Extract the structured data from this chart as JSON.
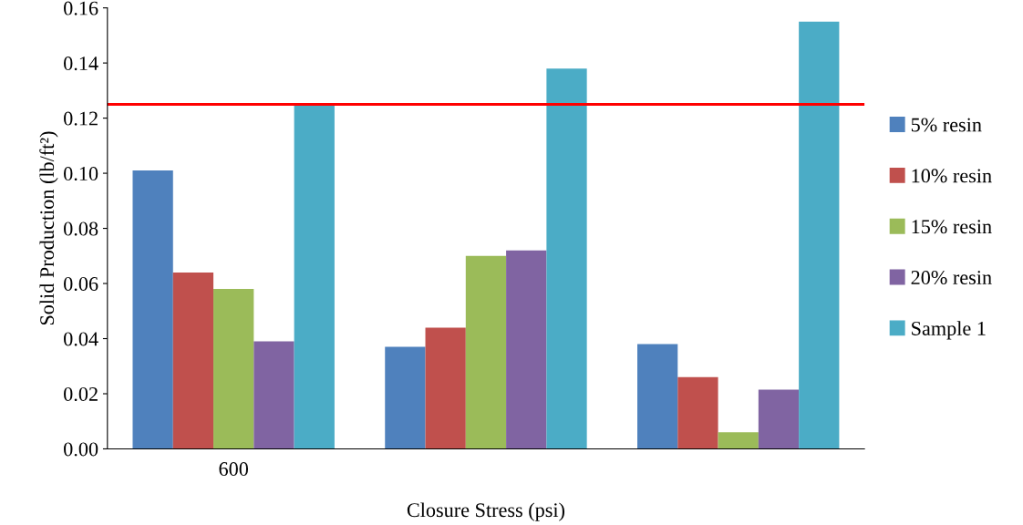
{
  "chart_data": {
    "type": "bar",
    "xlabel": "Closure Stress (psi)",
    "ylabel": "Solid Production (lb/ft²)",
    "categories": [
      "600",
      null,
      null
    ],
    "series": [
      {
        "name": "5% resin",
        "color": "#4f81bd",
        "values": [
          0.101,
          0.037,
          0.038
        ]
      },
      {
        "name": "10% resin",
        "color": "#c0504d",
        "values": [
          0.064,
          0.044,
          0.026
        ]
      },
      {
        "name": "15% resin",
        "color": "#9bbb59",
        "values": [
          0.058,
          0.07,
          0.006
        ]
      },
      {
        "name": "20% resin",
        "color": "#8064a2",
        "values": [
          0.039,
          0.072,
          0.0215
        ]
      },
      {
        "name": "Sample 1",
        "color": "#4bacc6",
        "values": [
          0.125,
          0.138,
          0.155
        ]
      }
    ],
    "ylim": [
      0,
      0.16
    ],
    "yticks": [
      {
        "value": 0,
        "label": "0.00"
      },
      {
        "value": 0.02,
        "label": "0.02"
      },
      {
        "value": 0.04,
        "label": "0.04"
      },
      {
        "value": 0.06,
        "label": "0.06"
      },
      {
        "value": 0.08,
        "label": "0.08"
      },
      {
        "value": 0.1,
        "label": "0.10"
      },
      {
        "value": 0.12,
        "label": "0.12"
      },
      {
        "value": 0.14,
        "label": "0.14"
      },
      {
        "value": 0.16,
        "label": "0.16"
      }
    ],
    "ref_lines": [
      {
        "axis": "y",
        "value": 0.125,
        "color": "#ff0000"
      }
    ],
    "grid": false,
    "legend": "right"
  }
}
